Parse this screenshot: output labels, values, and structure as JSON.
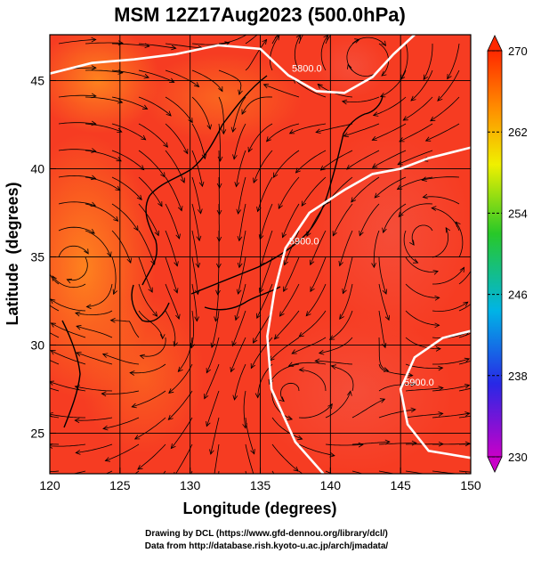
{
  "chart_data": {
    "type": "heatmap",
    "title": "MSM 12Z17Aug2023 (500.0hPa)",
    "xlabel": "Longitude (degrees)",
    "ylabel": "Latitude  (degrees)",
    "xlim": [
      120,
      150
    ],
    "ylim": [
      22.7,
      47.6
    ],
    "x_ticks": [
      120,
      125,
      130,
      135,
      140,
      145,
      150
    ],
    "y_ticks": [
      25,
      30,
      35,
      40,
      45
    ],
    "colorbar": {
      "min": 230,
      "max": 270,
      "ticks": [
        230,
        238,
        246,
        254,
        262,
        270
      ],
      "colors": [
        "#c800c8",
        "#2828e6",
        "#00b4e6",
        "#28c828",
        "#f0f000",
        "#ff8c00",
        "#ff2800"
      ]
    },
    "contours": [
      {
        "label": "5800.0",
        "points": [
          [
            120,
            45.4
          ],
          [
            123,
            46.0
          ],
          [
            126,
            46.2
          ],
          [
            129,
            46.5
          ],
          [
            132,
            47.0
          ],
          [
            135,
            46.8
          ],
          [
            137,
            45.3
          ],
          [
            139,
            44.4
          ],
          [
            141,
            44.3
          ],
          [
            143,
            45.2
          ],
          [
            144.5,
            46.5
          ],
          [
            146,
            47.6
          ]
        ]
      },
      {
        "label": "5900.0",
        "points": [
          [
            150,
            41.2
          ],
          [
            147,
            40.6
          ],
          [
            145,
            40.0
          ],
          [
            143,
            39.7
          ],
          [
            141,
            38.8
          ],
          [
            138.5,
            37.5
          ],
          [
            136.8,
            35.5
          ],
          [
            136,
            33.0
          ],
          [
            135.5,
            30.5
          ],
          [
            135.8,
            27.5
          ],
          [
            137.5,
            24.5
          ],
          [
            139.5,
            22.7
          ]
        ]
      },
      {
        "label": "5900.0",
        "points": [
          [
            150,
            30.8
          ],
          [
            148,
            30.4
          ],
          [
            146,
            29.3
          ],
          [
            145,
            27.5
          ],
          [
            145.5,
            25.5
          ],
          [
            147,
            24.0
          ],
          [
            150,
            23.6
          ]
        ]
      }
    ],
    "footer": [
      "Drawing by DCL (https://www.gfd-dennou.org/library/dcl/)",
      "Data from http://database.rish.kyoto-u.ac.jp/arch/jmadata/"
    ]
  }
}
